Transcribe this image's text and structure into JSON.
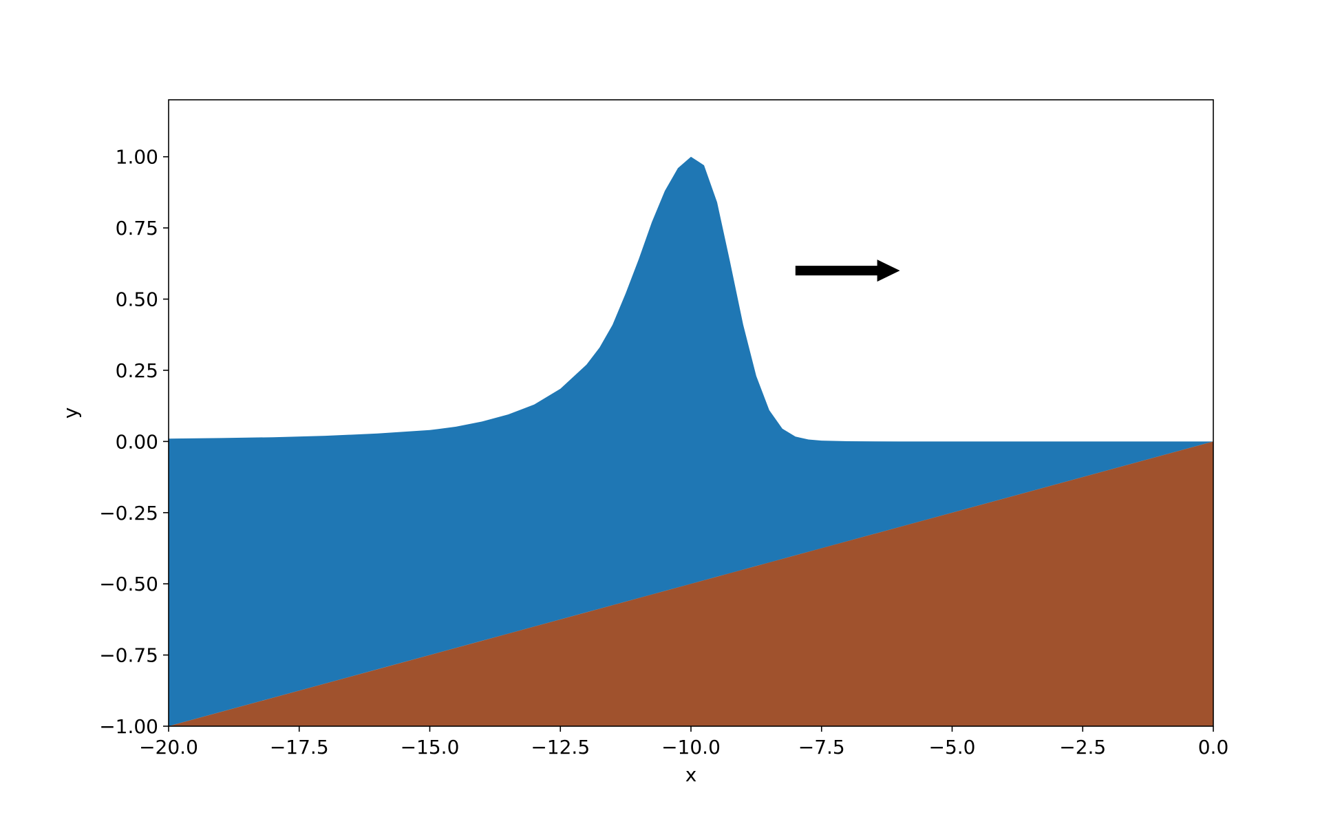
{
  "chart_data": {
    "type": "area",
    "xlabel": "x",
    "ylabel": "y",
    "xlim": [
      -20.0,
      0.0
    ],
    "ylim": [
      -1.0,
      1.2
    ],
    "x_ticks": [
      -20.0,
      -17.5,
      -15.0,
      -12.5,
      -10.0,
      -7.5,
      -5.0,
      -2.5,
      0.0
    ],
    "x_tick_labels": [
      "−20.0",
      "−17.5",
      "−15.0",
      "−12.5",
      "−10.0",
      "−7.5",
      "−5.0",
      "−2.5",
      "0.0"
    ],
    "y_ticks": [
      -1.0,
      -0.75,
      -0.5,
      -0.25,
      0.0,
      0.25,
      0.5,
      0.75,
      1.0
    ],
    "y_tick_labels": [
      "−1.00",
      "−0.75",
      "−0.50",
      "−0.25",
      "0.00",
      "0.25",
      "0.50",
      "0.75",
      "1.00"
    ],
    "grid": false,
    "series": [
      {
        "kind": "water-surface",
        "color": "#1f77b4",
        "x": [
          -20.0,
          -19.0,
          -18.0,
          -17.0,
          -16.0,
          -15.0,
          -14.5,
          -14.0,
          -13.5,
          -13.0,
          -12.5,
          -12.0,
          -11.75,
          -11.5,
          -11.25,
          -11.0,
          -10.75,
          -10.5,
          -10.25,
          -10.0,
          -9.75,
          -9.5,
          -9.25,
          -9.0,
          -8.75,
          -8.5,
          -8.25,
          -8.0,
          -7.75,
          -7.5,
          -7.0,
          -6.0,
          -4.0,
          -2.0,
          0.0
        ],
        "y": [
          0.01,
          0.012,
          0.015,
          0.02,
          0.028,
          0.04,
          0.052,
          0.07,
          0.095,
          0.13,
          0.185,
          0.27,
          0.33,
          0.41,
          0.52,
          0.64,
          0.77,
          0.88,
          0.96,
          1.0,
          0.97,
          0.84,
          0.63,
          0.41,
          0.23,
          0.11,
          0.045,
          0.017,
          0.007,
          0.003,
          0.001,
          0.0,
          0.0,
          0.0,
          0.0
        ]
      },
      {
        "kind": "sea-bed",
        "color": "#a0522d",
        "x": [
          -20.0,
          0.0
        ],
        "y": [
          -1.0,
          0.0
        ]
      }
    ],
    "annotations": [
      {
        "kind": "arrow",
        "color": "#000000",
        "x_start": -8.0,
        "x_end": -6.0,
        "y": 0.6
      }
    ]
  }
}
